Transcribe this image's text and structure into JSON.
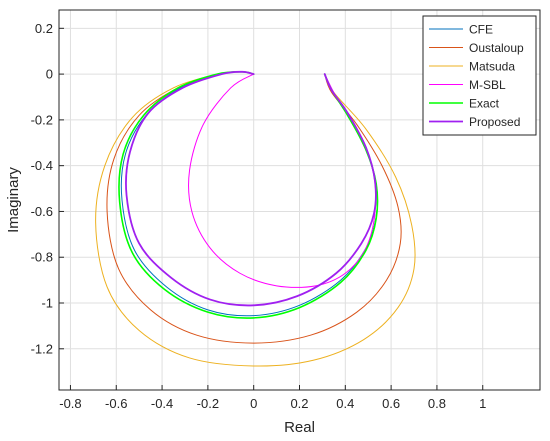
{
  "chart_data": {
    "type": "line",
    "title": "",
    "xlabel": "Real",
    "ylabel": "Imaginary",
    "xlim": [
      -0.85,
      1.25
    ],
    "ylim": [
      -1.38,
      0.28
    ],
    "xticks": [
      -0.8,
      -0.6,
      -0.4,
      -0.2,
      0,
      0.2,
      0.4,
      0.6,
      0.8,
      1
    ],
    "xtick_labels": [
      "-0.8",
      "-0.6",
      "-0.4",
      "-0.2",
      "0",
      "0.2",
      "0.4",
      "0.6",
      "0.8",
      "1"
    ],
    "yticks": [
      0.2,
      0,
      -0.2,
      -0.4,
      -0.6,
      -0.8,
      -1,
      -1.2
    ],
    "ytick_labels": [
      "0.2",
      "0",
      "-0.2",
      "-0.4",
      "-0.6",
      "-0.8",
      "-1",
      "-1.2"
    ],
    "grid": true,
    "legend_position": "top-right",
    "series": [
      {
        "name": "CFE",
        "color": "#0072BD",
        "x": [
          0.31,
          0.34,
          0.41,
          0.49,
          0.535,
          0.535,
          0.49,
          0.38,
          0.2,
          0.0,
          -0.2,
          -0.38,
          -0.52,
          -0.575,
          -0.56,
          -0.47,
          -0.32,
          -0.15,
          -0.05,
          0.0
        ],
        "y": [
          0.0,
          -0.07,
          -0.18,
          -0.33,
          -0.48,
          -0.62,
          -0.76,
          -0.9,
          -1.01,
          -1.055,
          -1.03,
          -0.93,
          -0.77,
          -0.55,
          -0.35,
          -0.18,
          -0.06,
          0.0,
          0.01,
          0.0
        ]
      },
      {
        "name": "Oustaloup",
        "color": "#D95319",
        "x": [
          0.31,
          0.34,
          0.45,
          0.56,
          0.63,
          0.64,
          0.58,
          0.45,
          0.25,
          0.0,
          -0.25,
          -0.45,
          -0.59,
          -0.64,
          -0.61,
          -0.5,
          -0.33,
          -0.15,
          -0.05,
          0.0
        ],
        "y": [
          0.0,
          -0.08,
          -0.22,
          -0.4,
          -0.58,
          -0.74,
          -0.9,
          -1.04,
          -1.14,
          -1.175,
          -1.14,
          -1.03,
          -0.85,
          -0.6,
          -0.37,
          -0.18,
          -0.06,
          0.0,
          0.01,
          0.0
        ]
      },
      {
        "name": "Matsuda",
        "color": "#EDB120",
        "x": [
          0.31,
          0.35,
          0.49,
          0.62,
          0.69,
          0.7,
          0.63,
          0.48,
          0.26,
          0.0,
          -0.28,
          -0.5,
          -0.64,
          -0.69,
          -0.65,
          -0.53,
          -0.35,
          -0.15,
          -0.05,
          0.0
        ],
        "y": [
          0.0,
          -0.08,
          -0.24,
          -0.45,
          -0.66,
          -0.85,
          -1.02,
          -1.16,
          -1.25,
          -1.275,
          -1.24,
          -1.12,
          -0.93,
          -0.65,
          -0.4,
          -0.19,
          -0.06,
          0.0,
          0.01,
          0.0
        ]
      },
      {
        "name": "M-SBL",
        "color": "#FF00FF",
        "x": [
          0.31,
          0.36,
          0.45,
          0.52,
          0.53,
          0.49,
          0.4,
          0.27,
          0.1,
          -0.06,
          -0.19,
          -0.27,
          -0.28,
          -0.22,
          -0.1,
          0.0
        ],
        "y": [
          0.0,
          -0.1,
          -0.25,
          -0.42,
          -0.6,
          -0.76,
          -0.87,
          -0.925,
          -0.925,
          -0.87,
          -0.76,
          -0.6,
          -0.42,
          -0.22,
          -0.06,
          0.0
        ]
      },
      {
        "name": "Exact",
        "color": "#00FF00",
        "x": [
          0.31,
          0.34,
          0.41,
          0.49,
          0.535,
          0.535,
          0.49,
          0.38,
          0.2,
          0.0,
          -0.2,
          -0.39,
          -0.53,
          -0.585,
          -0.57,
          -0.48,
          -0.33,
          -0.16,
          -0.05,
          0.0
        ],
        "y": [
          0.0,
          -0.07,
          -0.18,
          -0.33,
          -0.48,
          -0.63,
          -0.77,
          -0.91,
          -1.02,
          -1.065,
          -1.04,
          -0.94,
          -0.78,
          -0.56,
          -0.35,
          -0.18,
          -0.06,
          0.0,
          0.01,
          0.0
        ]
      },
      {
        "name": "Proposed",
        "color": "#A020F0",
        "x": [
          0.31,
          0.34,
          0.41,
          0.49,
          0.53,
          0.525,
          0.47,
          0.36,
          0.19,
          0.0,
          -0.19,
          -0.36,
          -0.5,
          -0.555,
          -0.54,
          -0.46,
          -0.31,
          -0.14,
          -0.05,
          0.0
        ],
        "y": [
          0.0,
          -0.07,
          -0.17,
          -0.32,
          -0.47,
          -0.61,
          -0.74,
          -0.87,
          -0.97,
          -1.01,
          -0.985,
          -0.89,
          -0.74,
          -0.53,
          -0.34,
          -0.17,
          -0.06,
          0.0,
          0.01,
          0.0
        ]
      }
    ]
  }
}
